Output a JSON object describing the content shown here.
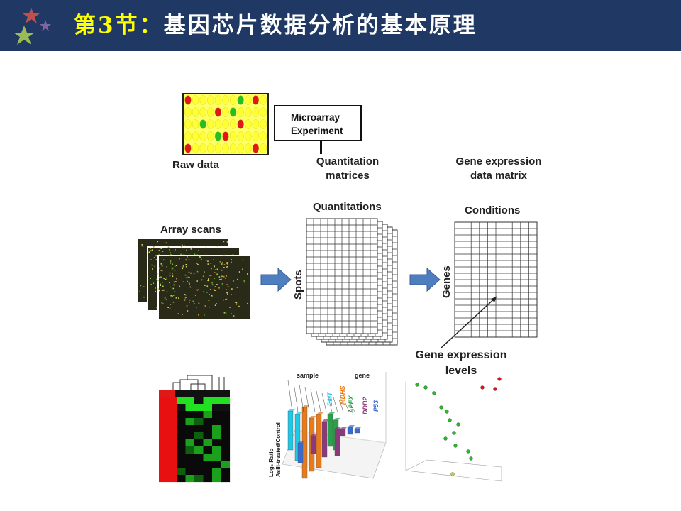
{
  "header": {
    "title_prefix": "第3节：",
    "title_main": "基因芯片数据分析的基本原理"
  },
  "diagram": {
    "experiment_box": {
      "line1": "Microarray",
      "line2": "Experiment"
    },
    "raw_data_label": "Raw data",
    "quantitation_matrices_line1": "Quantitation",
    "quantitation_matrices_line2": "matrices",
    "gene_expression_matrix_line1": "Gene expression",
    "gene_expression_matrix_line2": "data matrix",
    "array_scans_label": "Array scans",
    "quantitations_label": "Quantitations",
    "spots_label": "Spots",
    "conditions_label": "Conditions",
    "genes_label": "Genes",
    "expression_levels_line1": "Gene expression",
    "expression_levels_line2": "levels"
  },
  "bar3d": {
    "sample_label": "sample",
    "gene_label": "gene",
    "axis_label_line1": "Log₂ Ratio",
    "axis_label_line2": "AsIII-treated/Control",
    "gene_names": [
      "DMT",
      "MDHS",
      "APEX",
      "DDB2",
      "P53"
    ],
    "gene_colors": [
      "#1ec8e6",
      "#e87a1a",
      "#2aa04a",
      "#8a3a7a",
      "#3a6ad0"
    ]
  },
  "colors": {
    "header_bg": "#1f3864",
    "title_prefix": "#ffff00",
    "arrow_blue": "#4f7ec0",
    "spot_yellow": "#ffff33",
    "spot_red": "#e01818",
    "spot_green": "#22c022"
  }
}
